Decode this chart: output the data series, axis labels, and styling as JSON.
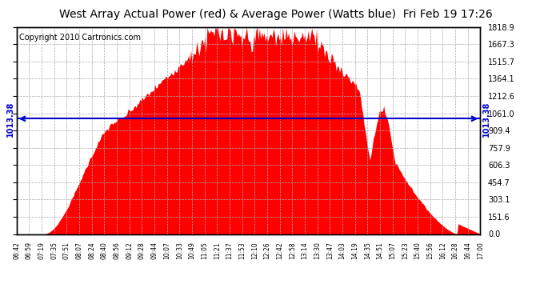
{
  "title": "West Array Actual Power (red) & Average Power (Watts blue)  Fri Feb 19 17:26",
  "copyright": "Copyright 2010 Cartronics.com",
  "avg_power": 1013.38,
  "y_max": 1818.9,
  "y_min": 0.0,
  "y_ticks": [
    0.0,
    151.6,
    303.1,
    454.7,
    606.3,
    757.9,
    909.4,
    1061.0,
    1212.6,
    1364.1,
    1515.7,
    1667.3,
    1818.9
  ],
  "x_labels": [
    "06:42",
    "06:59",
    "07:19",
    "07:35",
    "07:51",
    "08:07",
    "08:24",
    "08:40",
    "08:56",
    "09:12",
    "09:28",
    "09:44",
    "10:07",
    "10:33",
    "10:49",
    "11:05",
    "11:21",
    "11:37",
    "11:53",
    "12:10",
    "12:26",
    "12:42",
    "12:58",
    "13:14",
    "13:30",
    "13:47",
    "14:03",
    "14:19",
    "14:35",
    "14:51",
    "15:07",
    "15:23",
    "15:40",
    "15:56",
    "16:12",
    "16:28",
    "16:44",
    "17:00"
  ],
  "fill_color": "#ff0000",
  "line_color": "#0000cc",
  "background_color": "#ffffff",
  "grid_color": "#aaaaaa",
  "title_fontsize": 10,
  "copyright_fontsize": 7,
  "avg_label_fontsize": 7,
  "tick_fontsize": 7,
  "x_tick_fontsize": 5.5
}
